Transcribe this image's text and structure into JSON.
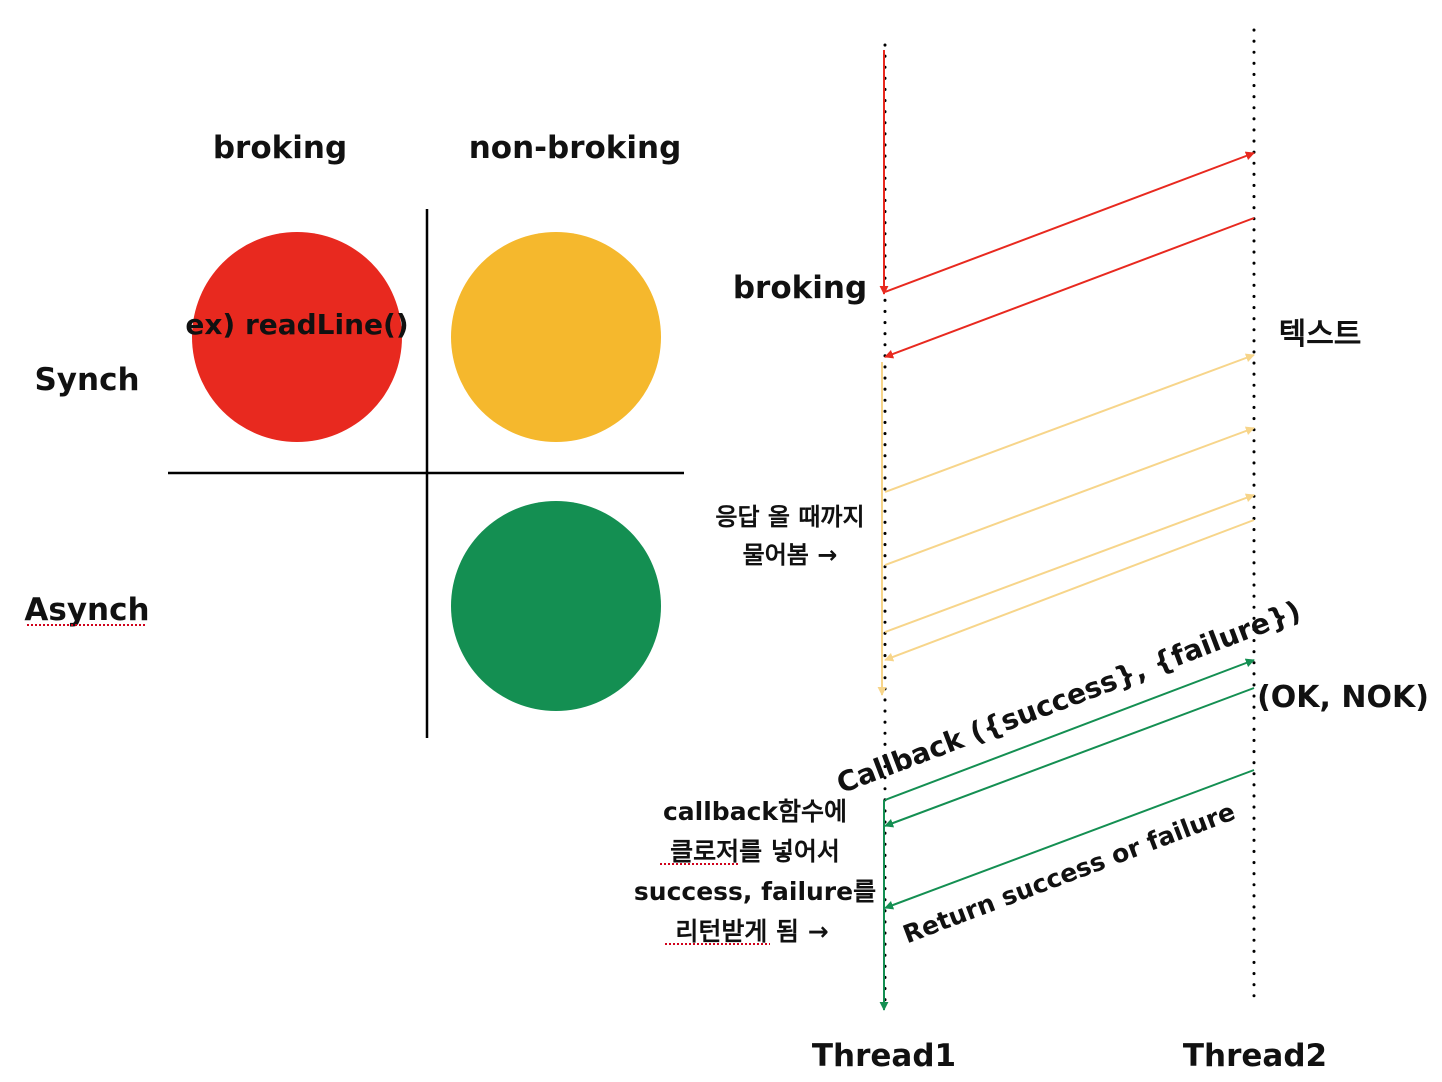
{
  "matrix": {
    "columns": [
      "broking",
      "non-broking"
    ],
    "rows": [
      "Synch",
      "Asynch"
    ],
    "cell_example": "ex) readLine()",
    "colors": {
      "red": "#E8291F",
      "yellow": "#F5B82D",
      "green": "#148F52"
    }
  },
  "sequence": {
    "broking_label": "broking",
    "text_label": "텍스트",
    "polling_label_line1": "응답 올 때까지",
    "polling_label_line2": "물어봄 →",
    "callback_label": "Callback ({success}, {failure})",
    "ok_nok_label": "(OK, NOK)",
    "callback_desc_line1": "callback함수에",
    "callback_desc_line2": "클로저를 넣어서",
    "callback_desc_line3": "success, failure를",
    "callback_desc_line4": "리턴받게 됨 →",
    "return_label": "Return success or failure",
    "thread1": "Thread1",
    "thread2": "Thread2",
    "colors": {
      "red": "#E8291F",
      "light_yellow": "#F7D58A",
      "green": "#148F52"
    }
  }
}
